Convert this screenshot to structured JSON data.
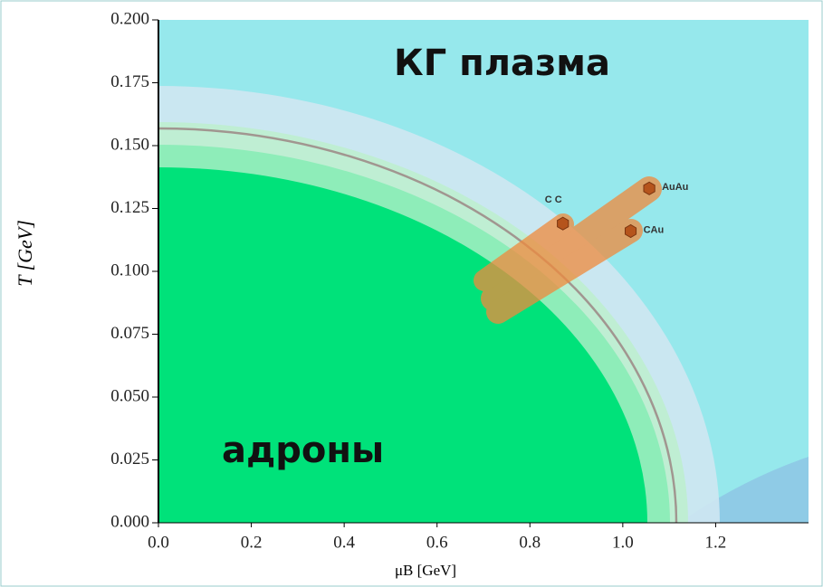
{
  "chart_data": {
    "type": "scatter",
    "x_label": "μB [GeV]",
    "y_label": "T [GeV]",
    "annotations": [
      "КГ плазма",
      "адроны"
    ],
    "xlim": [
      0,
      1.4
    ],
    "ylim": [
      0,
      0.2
    ],
    "xticks": [
      {
        "value": 0,
        "label": "0.0"
      },
      0.2,
      0.4,
      0.6,
      0.8,
      {
        "value": 1,
        "label": "1.0"
      },
      1.2
    ],
    "yticks": [
      {
        "value": 0,
        "label": "0.000"
      },
      {
        "value": 0.025,
        "label": "0.025"
      },
      {
        "value": 0.05,
        "label": "0.050"
      },
      {
        "value": 0.075,
        "label": "0.075"
      },
      {
        "value": 0.1,
        "label": "0.100"
      },
      {
        "value": 0.125,
        "label": "0.125"
      },
      {
        "value": 0.15,
        "label": "0.150"
      },
      {
        "value": 0.175,
        "label": "0.175"
      },
      {
        "value": 0.2,
        "label": "0.200"
      }
    ],
    "series": [
      {
        "name": "AuAu",
        "color": "#b5541c",
        "x": [
          1.057
        ],
        "values": [
          0.133
        ]
      },
      {
        "name": "CAu",
        "color": "#b5541c",
        "x": [
          1.017
        ],
        "values": [
          0.116
        ]
      },
      {
        "name": "C C",
        "color": "#b5541c",
        "x": [
          0.871
        ],
        "values": [
          0.119
        ]
      }
    ]
  }
}
